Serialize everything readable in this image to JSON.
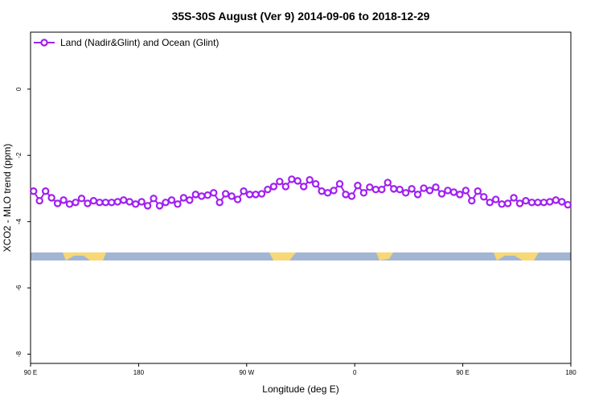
{
  "chart_data": {
    "type": "line",
    "title": "35S-30S August (Ver 9)   2014-09-06 to 2018-12-29",
    "x_label": "Longitude (deg E)",
    "y_label": "XCO2 - MLO trend (ppm)",
    "xlim": [
      90,
      540
    ],
    "ylim": [
      1.72,
      -8.28
    ],
    "xticks": [
      {
        "value": 90,
        "label": "90 E"
      },
      180,
      {
        "value": 270,
        "label": "90 W"
      },
      {
        "value": 360,
        "label": "0"
      },
      {
        "value": 450,
        "label": "90 E"
      },
      {
        "value": 540,
        "label": "180"
      }
    ],
    "yticks": [
      0,
      -2,
      -4,
      -6,
      -8
    ],
    "legend": "top-left",
    "x": [
      92.5,
      97.5,
      102.5,
      107.5,
      112.5,
      117.5,
      122.5,
      127.5,
      132.5,
      137.5,
      142.5,
      147.5,
      152.5,
      157.5,
      162.5,
      167.5,
      172.5,
      177.5,
      182.5,
      187.5,
      192.5,
      197.5,
      202.5,
      207.5,
      212.5,
      217.5,
      222.5,
      227.5,
      232.5,
      237.5,
      242.5,
      247.5,
      252.5,
      257.5,
      262.5,
      267.5,
      272.5,
      277.5,
      282.5,
      287.5,
      292.5,
      297.5,
      302.5,
      307.5,
      312.5,
      317.5,
      322.5,
      327.5,
      332.5,
      337.5,
      342.5,
      347.5,
      352.5,
      357.5,
      362.5,
      367.5,
      372.5,
      377.5,
      382.5,
      387.5,
      392.5,
      397.5,
      402.5,
      407.5,
      412.5,
      417.5,
      422.5,
      427.5,
      432.5,
      437.5,
      442.5,
      447.5,
      452.5,
      457.5,
      462.5,
      467.5,
      472.5,
      477.5,
      482.5,
      487.5,
      492.5,
      497.5,
      502.5,
      507.5,
      512.5,
      517.5,
      522.5,
      527.5,
      532.5,
      537.5
    ],
    "series": [
      {
        "name": "Land (Nadir&Glint) and Ocean (Glint)",
        "color": "#a020f0",
        "values": [
          -3.08,
          -3.37,
          -3.08,
          -3.28,
          -3.45,
          -3.35,
          -3.47,
          -3.42,
          -3.3,
          -3.45,
          -3.37,
          -3.42,
          -3.42,
          -3.42,
          -3.4,
          -3.35,
          -3.4,
          -3.47,
          -3.4,
          -3.52,
          -3.3,
          -3.52,
          -3.42,
          -3.35,
          -3.47,
          -3.28,
          -3.35,
          -3.18,
          -3.23,
          -3.2,
          -3.13,
          -3.42,
          -3.16,
          -3.23,
          -3.33,
          -3.08,
          -3.18,
          -3.18,
          -3.16,
          -3.03,
          -2.94,
          -2.79,
          -2.94,
          -2.72,
          -2.77,
          -2.94,
          -2.74,
          -2.86,
          -3.08,
          -3.13,
          -3.06,
          -2.86,
          -3.18,
          -3.23,
          -2.91,
          -3.13,
          -2.96,
          -3.03,
          -3.03,
          -2.82,
          -3.01,
          -3.03,
          -3.13,
          -3.01,
          -3.18,
          -2.99,
          -3.06,
          -2.96,
          -3.16,
          -3.06,
          -3.11,
          -3.18,
          -3.06,
          -3.37,
          -3.08,
          -3.25,
          -3.42,
          -3.33,
          -3.47,
          -3.45,
          -3.28,
          -3.45,
          -3.37,
          -3.42,
          -3.42,
          -3.42,
          -3.4,
          -3.35,
          -3.4,
          -3.49
        ]
      }
    ]
  }
}
